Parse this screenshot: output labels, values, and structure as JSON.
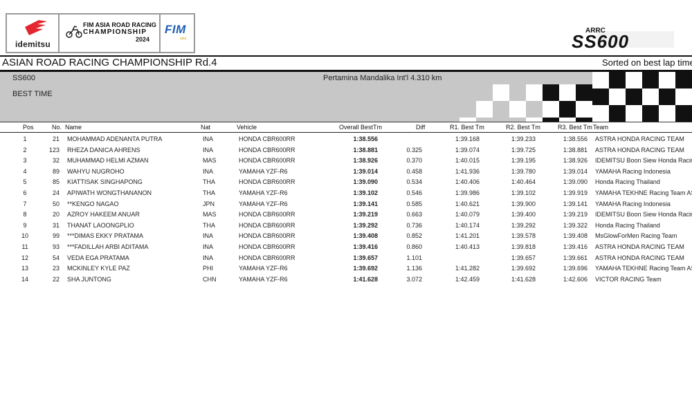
{
  "header": {
    "sponsor_logo_text": "idemitsu",
    "series_logo": {
      "line1": "FIM ASIA ROAD RACING",
      "line2": "CHAMPIONSHIP",
      "line3": "2024"
    },
    "fim_logo_text": "FIM",
    "fim_logo_sub": "asia",
    "class_logo": {
      "top": "ARRC",
      "main": "SS600"
    }
  },
  "title": "ASIAN ROAD RACING CHAMPIONSHIP Rd.4",
  "sort_note": "Sorted on best lap time",
  "session": {
    "class_name": "SS600",
    "session_name": "BEST TIME",
    "circuit": "Pertamina Mandalika Int'l 4.310 km"
  },
  "columns": {
    "pos": "Pos",
    "no": "No.",
    "name": "Name",
    "nat": "Nat",
    "vehicle": "Vehicle",
    "overall": "Overall BestTm",
    "diff": "Diff",
    "r1": "R1. Best Tm",
    "r2": "R2. Best Tm",
    "r3": "R3. Best Tm",
    "team": "Team"
  },
  "rows": [
    {
      "pos": "1",
      "no": "21",
      "name": "MOHAMMAD ADENANTA PUTRA",
      "nat": "INA",
      "vehicle": "HONDA CBR600RR",
      "overall": "1:38.556",
      "diff": "",
      "r1": "1:39.168",
      "r2": "1:39.233",
      "r3": "1:38.556",
      "team": "ASTRA HONDA RACING TEAM"
    },
    {
      "pos": "2",
      "no": "123",
      "name": "RHEZA DANICA AHRENS",
      "nat": "INA",
      "vehicle": "HONDA CBR600RR",
      "overall": "1:38.881",
      "diff": "0.325",
      "r1": "1:39.074",
      "r2": "1:39.725",
      "r3": "1:38.881",
      "team": "ASTRA HONDA RACING TEAM"
    },
    {
      "pos": "3",
      "no": "32",
      "name": "MUHAMMAD HELMI AZMAN",
      "nat": "MAS",
      "vehicle": "HONDA CBR600RR",
      "overall": "1:38.926",
      "diff": "0.370",
      "r1": "1:40.015",
      "r2": "1:39.195",
      "r3": "1:38.926",
      "team": "IDEMITSU Boon Siew Honda Racing"
    },
    {
      "pos": "4",
      "no": "89",
      "name": "WAHYU NUGROHO",
      "nat": "INA",
      "vehicle": "YAMAHA YZF-R6",
      "overall": "1:39.014",
      "diff": "0.458",
      "r1": "1:41.936",
      "r2": "1:39.780",
      "r3": "1:39.014",
      "team": "YAMAHA Racing Indonesia"
    },
    {
      "pos": "5",
      "no": "85",
      "name": "KIATTISAK SINGHAPONG",
      "nat": "THA",
      "vehicle": "HONDA CBR600RR",
      "overall": "1:39.090",
      "diff": "0.534",
      "r1": "1:40.406",
      "r2": "1:40.464",
      "r3": "1:39.090",
      "team": "Honda Racing Thailand"
    },
    {
      "pos": "6",
      "no": "24",
      "name": "APIWATH WONGTHANANON",
      "nat": "THA",
      "vehicle": "YAMAHA YZF-R6",
      "overall": "1:39.102",
      "diff": "0.546",
      "r1": "1:39.986",
      "r2": "1:39.102",
      "r3": "1:39.919",
      "team": "YAMAHA TEKHNE Racing Team ASIA"
    },
    {
      "pos": "7",
      "no": "50",
      "name": "**KENGO NAGAO",
      "nat": "JPN",
      "vehicle": "YAMAHA YZF-R6",
      "overall": "1:39.141",
      "diff": "0.585",
      "r1": "1:40.621",
      "r2": "1:39.900",
      "r3": "1:39.141",
      "team": "YAMAHA Racing Indonesia"
    },
    {
      "pos": "8",
      "no": "20",
      "name": "AZROY HAKEEM ANUAR",
      "nat": "MAS",
      "vehicle": "HONDA CBR600RR",
      "overall": "1:39.219",
      "diff": "0.663",
      "r1": "1:40.079",
      "r2": "1:39.400",
      "r3": "1:39.219",
      "team": "IDEMITSU Boon Siew Honda Racing"
    },
    {
      "pos": "9",
      "no": "31",
      "name": "THANAT LAOONGPLIO",
      "nat": "THA",
      "vehicle": "HONDA CBR600RR",
      "overall": "1:39.292",
      "diff": "0.736",
      "r1": "1:40.174",
      "r2": "1:39.292",
      "r3": "1:39.322",
      "team": "Honda Racing Thailand"
    },
    {
      "pos": "10",
      "no": "99",
      "name": "***DIMAS EKKY PRATAMA",
      "nat": "INA",
      "vehicle": "HONDA CBR600RR",
      "overall": "1:39.408",
      "diff": "0.852",
      "r1": "1:41.201",
      "r2": "1:39.578",
      "r3": "1:39.408",
      "team": "MsGlowForMen Racing Team"
    },
    {
      "pos": "11",
      "no": "93",
      "name": "***FADILLAH ARBI ADITAMA",
      "nat": "INA",
      "vehicle": "HONDA CBR600RR",
      "overall": "1:39.416",
      "diff": "0.860",
      "r1": "1:40.413",
      "r2": "1:39.818",
      "r3": "1:39.416",
      "team": "ASTRA HONDA RACING TEAM"
    },
    {
      "pos": "12",
      "no": "54",
      "name": "VEDA EGA PRATAMA",
      "nat": "INA",
      "vehicle": "HONDA CBR600RR",
      "overall": "1:39.657",
      "diff": "1.101",
      "r1": "",
      "r2": "1:39.657",
      "r3": "1:39.661",
      "team": "ASTRA HONDA RACING TEAM"
    },
    {
      "pos": "13",
      "no": "23",
      "name": "MCKINLEY KYLE PAZ",
      "nat": "PHI",
      "vehicle": "YAMAHA YZF-R6",
      "overall": "1:39.692",
      "diff": "1.136",
      "r1": "1:41.282",
      "r2": "1:39.692",
      "r3": "1:39.696",
      "team": "YAMAHA TEKHNE Racing Team ASIA"
    },
    {
      "pos": "14",
      "no": "22",
      "name": "SHA JUNTONG",
      "nat": "CHN",
      "vehicle": "YAMAHA YZF-R6",
      "overall": "1:41.628",
      "diff": "3.072",
      "r1": "1:42.459",
      "r2": "1:41.628",
      "r3": "1:42.606",
      "team": "VICTOR RACING Team"
    }
  ]
}
